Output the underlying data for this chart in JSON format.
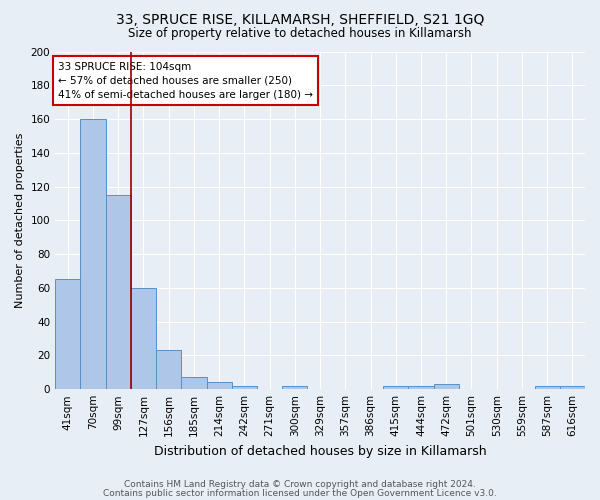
{
  "title": "33, SPRUCE RISE, KILLAMARSH, SHEFFIELD, S21 1GQ",
  "subtitle": "Size of property relative to detached houses in Killamarsh",
  "xlabel": "Distribution of detached houses by size in Killamarsh",
  "ylabel": "Number of detached properties",
  "footnote1": "Contains HM Land Registry data © Crown copyright and database right 2024.",
  "footnote2": "Contains public sector information licensed under the Open Government Licence v3.0.",
  "categories": [
    "41sqm",
    "70sqm",
    "99sqm",
    "127sqm",
    "156sqm",
    "185sqm",
    "214sqm",
    "242sqm",
    "271sqm",
    "300sqm",
    "329sqm",
    "357sqm",
    "386sqm",
    "415sqm",
    "444sqm",
    "472sqm",
    "501sqm",
    "530sqm",
    "559sqm",
    "587sqm",
    "616sqm"
  ],
  "values": [
    65,
    160,
    115,
    60,
    23,
    7,
    4,
    2,
    0,
    2,
    0,
    0,
    0,
    2,
    2,
    3,
    0,
    0,
    0,
    2,
    2
  ],
  "bar_color": "#aec6e8",
  "bar_edge_color": "#5590c8",
  "bg_color": "#e8eef5",
  "grid_color": "#ffffff",
  "vline_x_index": 2,
  "vline_color": "#990000",
  "annotation_title": "33 SPRUCE RISE: 104sqm",
  "annotation_line2": "← 57% of detached houses are smaller (250)",
  "annotation_line3": "41% of semi-detached houses are larger (180) →",
  "annotation_box_color": "#ffffff",
  "annotation_box_edge": "#cc0000",
  "ylim": [
    0,
    200
  ],
  "yticks": [
    0,
    20,
    40,
    60,
    80,
    100,
    120,
    140,
    160,
    180,
    200
  ],
  "title_fontsize": 10,
  "subtitle_fontsize": 8.5,
  "ylabel_fontsize": 8,
  "xlabel_fontsize": 9,
  "tick_fontsize": 7.5,
  "footnote_fontsize": 6.5
}
